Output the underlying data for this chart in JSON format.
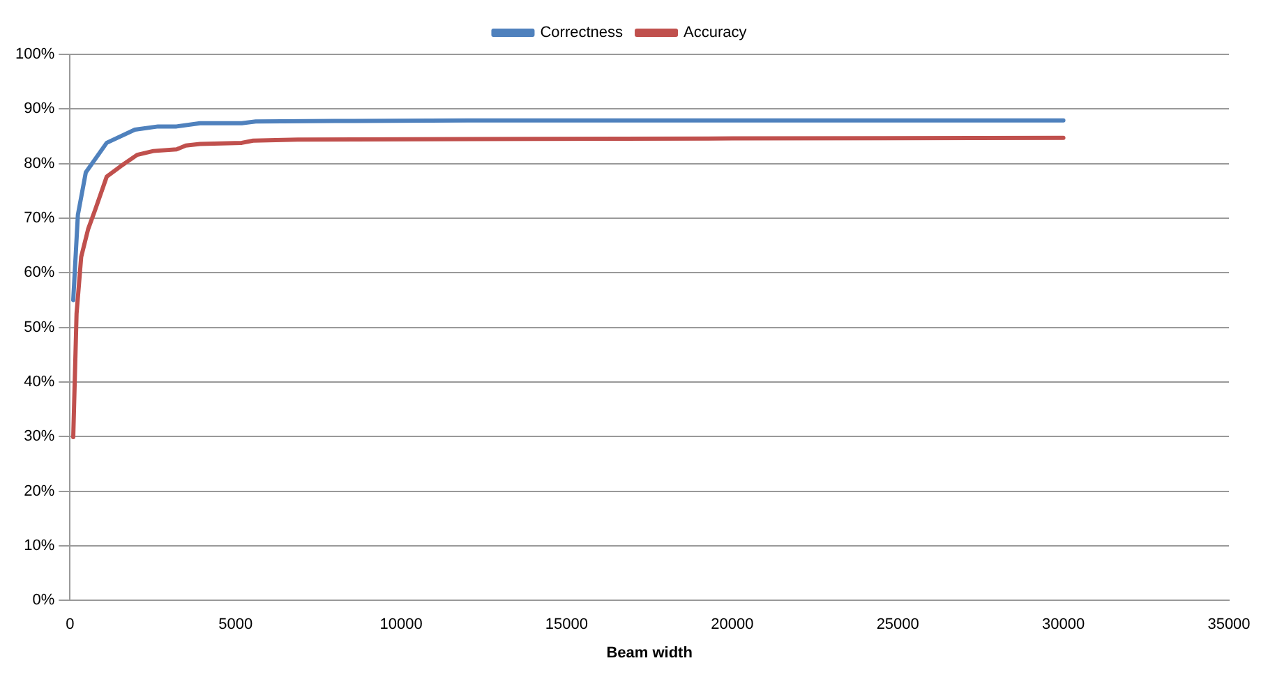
{
  "chart_data": {
    "type": "line",
    "xlabel": "Beam width",
    "xlim": [
      0,
      35000
    ],
    "xticks": [
      0,
      5000,
      10000,
      15000,
      20000,
      25000,
      30000,
      35000
    ],
    "ylim": [
      0,
      100
    ],
    "yticks": [
      {
        "value": 0,
        "label": "0%"
      },
      {
        "value": 10,
        "label": "10%"
      },
      {
        "value": 20,
        "label": "20%"
      },
      {
        "value": 30,
        "label": "30%"
      },
      {
        "value": 40,
        "label": "40%"
      },
      {
        "value": 50,
        "label": "50%"
      },
      {
        "value": 60,
        "label": "60%"
      },
      {
        "value": 70,
        "label": "70%"
      },
      {
        "value": 80,
        "label": "80%"
      },
      {
        "value": 90,
        "label": "90%"
      },
      {
        "value": 100,
        "label": "100%"
      }
    ],
    "grid": "y",
    "legend": "top",
    "marker": "none",
    "line_style": "solid",
    "series": [
      {
        "name": "Correctness",
        "color": "#4f81bd",
        "x": [
          100,
          240,
          480,
          1110,
          1960,
          2660,
          3220,
          3930,
          5190,
          5610,
          8000,
          12000,
          20000,
          30000
        ],
        "values": [
          55,
          70.6,
          78.4,
          83.8,
          86.2,
          86.8,
          86.8,
          87.4,
          87.4,
          87.7,
          87.8,
          87.9,
          87.9,
          87.9
        ]
      },
      {
        "name": "Accuracy",
        "color": "#c0504d",
        "x": [
          100,
          200,
          340,
          550,
          760,
          1110,
          1530,
          2030,
          2520,
          3220,
          3500,
          3930,
          5190,
          5530,
          6880,
          12000,
          20000,
          30000
        ],
        "values": [
          29.9,
          52.5,
          62.9,
          68,
          71.5,
          77.6,
          79.5,
          81.6,
          82.3,
          82.6,
          83.3,
          83.6,
          83.8,
          84.2,
          84.4,
          84.5,
          84.6,
          84.7
        ]
      }
    ]
  }
}
